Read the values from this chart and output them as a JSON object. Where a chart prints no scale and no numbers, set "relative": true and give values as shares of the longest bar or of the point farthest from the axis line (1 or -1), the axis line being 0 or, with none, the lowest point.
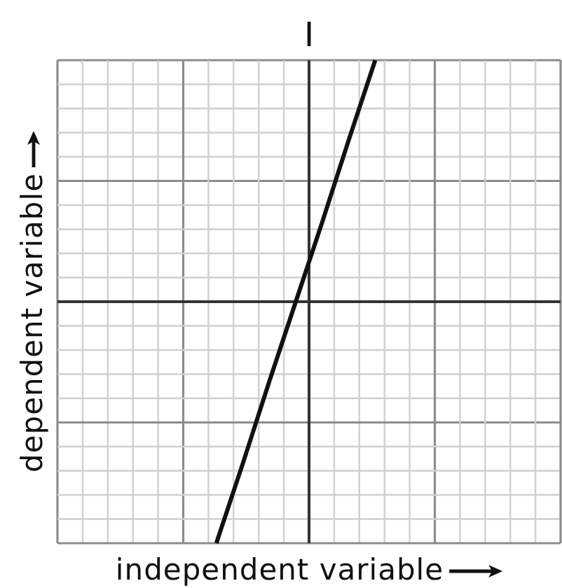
{
  "chart_data": {
    "type": "line",
    "title": "I",
    "xlabel": "independent variable",
    "ylabel": "dependent variable",
    "categories": [
      null,
      null,
      null,
      null,
      null,
      null,
      null,
      null,
      null,
      null,
      null,
      null,
      null,
      null,
      null,
      null,
      null,
      null,
      null,
      null
    ],
    "values": [
      null,
      null,
      null,
      null,
      null,
      null,
      -1,
      -0.67,
      -0.33,
      0,
      0.33,
      0.67,
      1,
      null,
      null,
      null,
      null,
      null,
      null,
      null
    ],
    "color": "#111111",
    "relative": true,
    "grid": true
  }
}
